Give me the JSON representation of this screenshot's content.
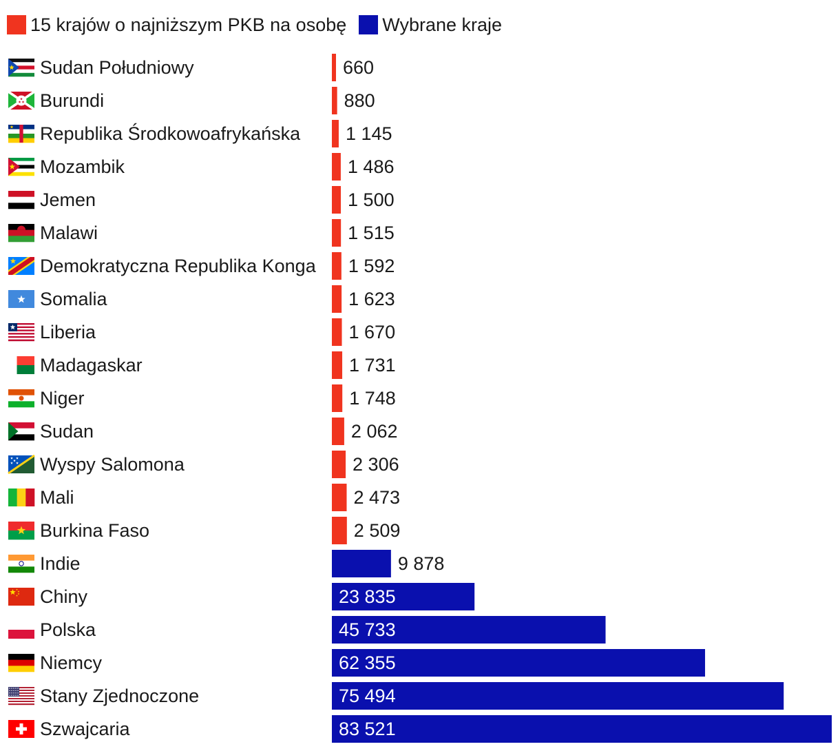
{
  "legend": {
    "low_label": "15 krajów o najniższym PKB na osobę",
    "selected_label": "Wybrane kraje"
  },
  "colors": {
    "low": "#f0341f",
    "selected": "#0a10ae",
    "text": "#1a1a1a",
    "value_inside": "#ffffff"
  },
  "chart_data": {
    "type": "bar",
    "orientation": "horizontal",
    "title": "",
    "xlabel": "",
    "ylabel": "",
    "xlim": [
      0,
      83521
    ],
    "grid": false,
    "legend_position": "top-left",
    "series": [
      {
        "name": "15 krajów o najniższym PKB na osobę",
        "color": "#f0341f"
      },
      {
        "name": "Wybrane kraje",
        "color": "#0a10ae"
      }
    ],
    "categories": [
      "Sudan Południowy",
      "Burundi",
      "Republika Środkowoafrykańska",
      "Mozambik",
      "Jemen",
      "Malawi",
      "Demokratyczna Republika Konga",
      "Somalia",
      "Liberia",
      "Madagaskar",
      "Niger",
      "Sudan",
      "Wyspy Salomona",
      "Mali",
      "Burkina Faso",
      "Indie",
      "Chiny",
      "Polska",
      "Niemcy",
      "Stany Zjednoczone",
      "Szwajcaria"
    ],
    "values": [
      660,
      880,
      1145,
      1486,
      1500,
      1515,
      1592,
      1623,
      1670,
      1731,
      1748,
      2062,
      2306,
      2473,
      2509,
      9878,
      23835,
      45733,
      62355,
      75494,
      83521
    ],
    "value_labels": [
      "660",
      "880",
      "1 145",
      "1 486",
      "1 500",
      "1 515",
      "1 592",
      "1 623",
      "1 670",
      "1 731",
      "1 748",
      "2 062",
      "2 306",
      "2 473",
      "2 509",
      "9 878",
      "23 835",
      "45 733",
      "62 355",
      "75 494",
      "83 521"
    ],
    "groups": [
      "low",
      "low",
      "low",
      "low",
      "low",
      "low",
      "low",
      "low",
      "low",
      "low",
      "low",
      "low",
      "low",
      "low",
      "low",
      "selected",
      "selected",
      "selected",
      "selected",
      "selected",
      "selected"
    ],
    "flags": [
      "south-sudan-flag-icon",
      "burundi-flag-icon",
      "central-african-republic-flag-icon",
      "mozambique-flag-icon",
      "yemen-flag-icon",
      "malawi-flag-icon",
      "dr-congo-flag-icon",
      "somalia-flag-icon",
      "liberia-flag-icon",
      "madagascar-flag-icon",
      "niger-flag-icon",
      "sudan-flag-icon",
      "solomon-islands-flag-icon",
      "mali-flag-icon",
      "burkina-faso-flag-icon",
      "india-flag-icon",
      "china-flag-icon",
      "poland-flag-icon",
      "germany-flag-icon",
      "usa-flag-icon",
      "switzerland-flag-icon"
    ]
  }
}
